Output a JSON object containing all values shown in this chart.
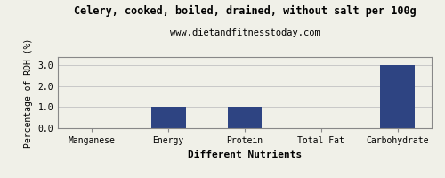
{
  "title": "Celery, cooked, boiled, drained, without salt per 100g",
  "subtitle": "www.dietandfitnesstoday.com",
  "xlabel": "Different Nutrients",
  "ylabel": "Percentage of RDH (%)",
  "categories": [
    "Manganese",
    "Energy",
    "Protein",
    "Total Fat",
    "Carbohydrate"
  ],
  "values": [
    0.0,
    1.0,
    1.0,
    0.0,
    3.0
  ],
  "bar_color": "#2e4482",
  "ylim": [
    0,
    3.4
  ],
  "yticks": [
    0.0,
    1.0,
    2.0,
    3.0
  ],
  "background_color": "#f0f0e8",
  "grid_color": "#c8c8c8",
  "title_fontsize": 8.5,
  "subtitle_fontsize": 7.5,
  "xlabel_fontsize": 8,
  "ylabel_fontsize": 7,
  "tick_fontsize": 7,
  "bar_width": 0.45
}
